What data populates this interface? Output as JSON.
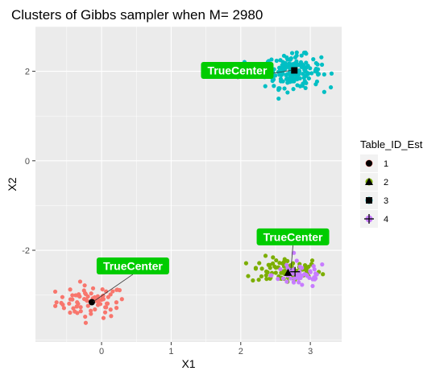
{
  "chart_data": {
    "type": "scatter",
    "title": "Clusters of Gibbs sampler when M= 2980",
    "xlabel": "X1",
    "ylabel": "X2",
    "xlim": [
      -0.95,
      3.45
    ],
    "ylim": [
      -4.05,
      3.0
    ],
    "x_ticks": [
      0,
      1,
      2,
      3
    ],
    "y_ticks": [
      -2,
      0,
      2
    ],
    "x_tick_labels": [
      "0",
      "1",
      "2",
      "3"
    ],
    "y_tick_labels": [
      "-2",
      "0",
      "2"
    ],
    "grid": true,
    "legend_position": "right",
    "legend": {
      "title": "Table_ID_Est",
      "entries": [
        {
          "label": "1",
          "color": "#F8766D",
          "shape": "circle"
        },
        {
          "label": "2",
          "color": "#7CAE00",
          "shape": "triangle"
        },
        {
          "label": "3",
          "color": "#00BFC4",
          "shape": "square"
        },
        {
          "label": "4",
          "color": "#C77CFF",
          "shape": "plus"
        }
      ]
    },
    "series": [
      {
        "name": "1",
        "color": "#F8766D",
        "center": [
          -0.15,
          -3.15
        ],
        "spread": [
          0.25,
          0.18
        ],
        "n": 75
      },
      {
        "name": "2",
        "color": "#7CAE00",
        "center": [
          2.65,
          -2.45
        ],
        "spread": [
          0.25,
          0.15
        ],
        "n": 90
      },
      {
        "name": "3",
        "color": "#00BFC4",
        "center": [
          2.75,
          2.0
        ],
        "spread": [
          0.2,
          0.18
        ],
        "n": 170
      },
      {
        "name": "4",
        "color": "#C77CFF",
        "center": [
          2.85,
          -2.55
        ],
        "spread": [
          0.2,
          0.15
        ],
        "n": 55
      }
    ],
    "estimated_centers": [
      {
        "table": "1",
        "x": -0.14,
        "y": -3.16,
        "shape": "circle"
      },
      {
        "table": "2",
        "x": 2.68,
        "y": -2.5,
        "shape": "triangle"
      },
      {
        "table": "3",
        "x": 2.77,
        "y": 2.02,
        "shape": "square"
      },
      {
        "table": "4",
        "x": 2.78,
        "y": -2.48,
        "shape": "plus"
      }
    ],
    "annotations": [
      {
        "text": "TrueCenter",
        "x": 0.45,
        "y": -2.35,
        "point": [
          -0.12,
          -3.15
        ]
      },
      {
        "text": "TrueCenter",
        "x": 1.95,
        "y": 2.02,
        "point": [
          2.72,
          2.02
        ]
      },
      {
        "text": "TrueCenter",
        "x": 2.75,
        "y": -1.7,
        "point": [
          2.72,
          -2.45
        ]
      }
    ]
  }
}
